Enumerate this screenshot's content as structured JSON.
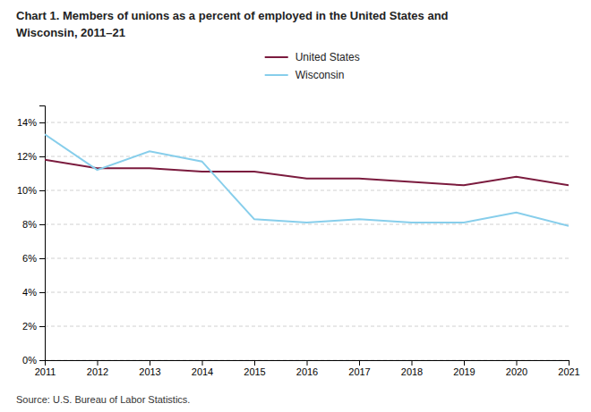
{
  "chart_data": {
    "type": "line",
    "title": "Chart 1. Members of unions as a percent of employed in the United States and\nWisconsin, 2011–21",
    "annotations": [
      "Source: U.S. Bureau of Labor Statistics."
    ],
    "x": [
      2011,
      2012,
      2013,
      2014,
      2015,
      2016,
      2017,
      2018,
      2019,
      2020,
      2021
    ],
    "series": [
      {
        "name": "United States",
        "color": "#7B1B3E",
        "values": [
          11.8,
          11.3,
          11.3,
          11.1,
          11.1,
          10.7,
          10.7,
          10.5,
          10.3,
          10.8,
          10.3
        ]
      },
      {
        "name": "Wisconsin",
        "color": "#87CEEB",
        "values": [
          13.3,
          11.2,
          12.3,
          11.7,
          8.3,
          8.1,
          8.3,
          8.1,
          8.1,
          8.7,
          7.9
        ]
      }
    ],
    "xlim": [
      2011,
      2021
    ],
    "xticks": [
      2011,
      2012,
      2013,
      2014,
      2015,
      2016,
      2017,
      2018,
      2019,
      2020,
      2021
    ],
    "ylim": [
      0,
      15
    ],
    "yticks": [
      {
        "value": 0,
        "label": "0%"
      },
      {
        "value": 2,
        "label": "2%"
      },
      {
        "value": 4,
        "label": "4%"
      },
      {
        "value": 6,
        "label": "6%"
      },
      {
        "value": 8,
        "label": "8%"
      },
      {
        "value": 10,
        "label": "10%"
      },
      {
        "value": 12,
        "label": "12%"
      },
      {
        "value": 14,
        "label": "14%"
      }
    ],
    "grid": "y",
    "legend": "top"
  }
}
